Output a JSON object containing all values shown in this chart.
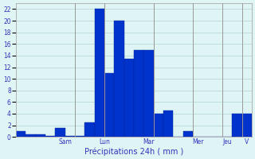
{
  "values": [
    1,
    0.5,
    0.5,
    0.2,
    1.5,
    0.2,
    0.2,
    2.5,
    22,
    11,
    20,
    13.5,
    15,
    15,
    4,
    4.5,
    0,
    1,
    0,
    0,
    0,
    0,
    4,
    4
  ],
  "bar_color": "#0033cc",
  "bar_edge_color": "#002299",
  "background_color": "#dff5f5",
  "grid_color": "#b8d8d8",
  "tick_label_color": "#3333bb",
  "xlabel": "Précipitations 24h ( mm )",
  "xlabel_color": "#3333bb",
  "ylim": [
    0,
    23
  ],
  "yticks": [
    0,
    2,
    4,
    6,
    8,
    10,
    12,
    14,
    16,
    18,
    20,
    22
  ],
  "day_labels": [
    "Sam",
    "Lun",
    "Mar",
    "Mer",
    "Jeu",
    "V"
  ],
  "vline_positions": [
    5,
    8,
    13,
    17,
    20,
    22
  ]
}
